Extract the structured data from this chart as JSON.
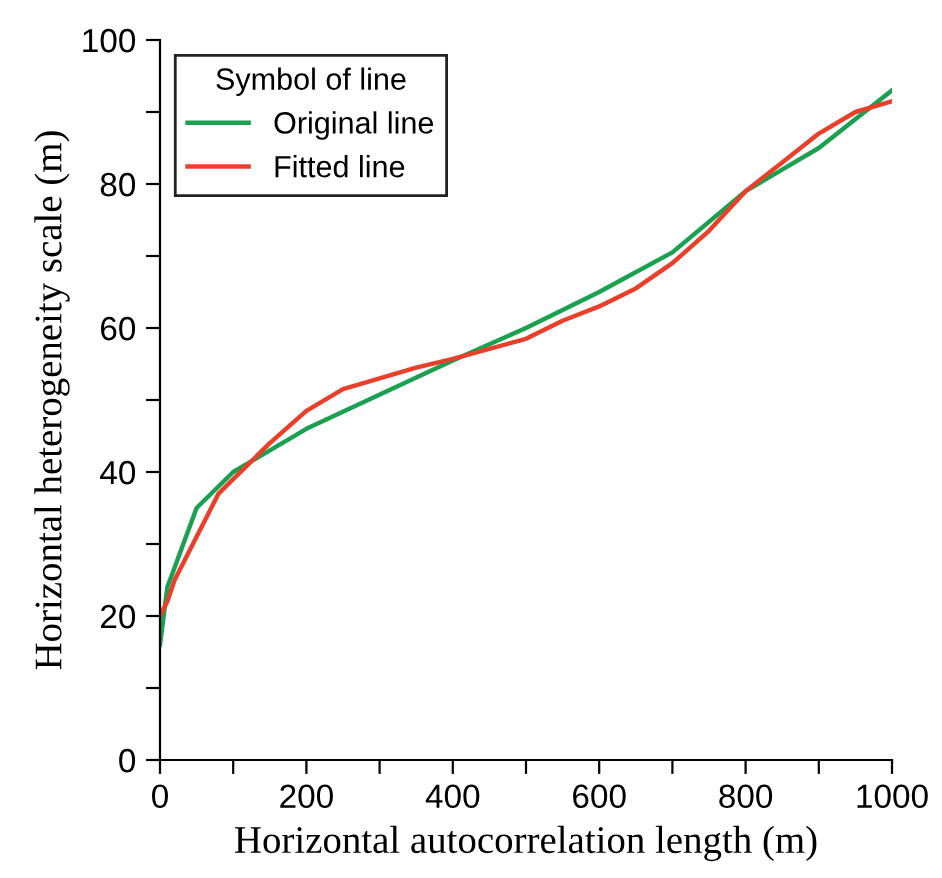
{
  "chart_data": {
    "type": "line",
    "xlabel": "Horizontal autocorrelation length (m)",
    "ylabel": "Horizontal heterogeneity scale (m)",
    "legend_title": "Symbol of line",
    "legend": "top left",
    "grid": false,
    "xlim": [
      0,
      1000
    ],
    "ylim": [
      0,
      100
    ],
    "xticks": [
      0,
      {
        "value": 100,
        "label": null
      },
      200,
      {
        "value": 300,
        "label": null
      },
      400,
      {
        "value": 500,
        "label": null
      },
      600,
      {
        "value": 700,
        "label": null
      },
      800,
      {
        "value": 900,
        "label": null
      },
      1000
    ],
    "yticks": [
      0,
      {
        "value": 10,
        "label": null
      },
      20,
      {
        "value": 30,
        "label": null
      },
      40,
      {
        "value": 50,
        "label": null
      },
      60,
      {
        "value": 70,
        "label": null
      },
      80,
      {
        "value": 90,
        "label": null
      },
      100
    ],
    "series": [
      {
        "name": "Original line",
        "color": "#1aa050",
        "x": [
          0,
          10,
          50,
          100,
          200,
          400,
          500,
          600,
          700,
          800,
          900,
          1000
        ],
        "values": [
          16,
          24,
          35,
          40,
          46,
          55.5,
          60,
          65,
          70.5,
          79,
          85,
          93
        ]
      },
      {
        "name": "Fitted line",
        "color": "#e8402a",
        "x": [
          0,
          10,
          20,
          50,
          80,
          100,
          150,
          200,
          250,
          300,
          350,
          400,
          500,
          550,
          600,
          650,
          700,
          750,
          800,
          850,
          900,
          950,
          1000
        ],
        "values": [
          20,
          22,
          25,
          31,
          37,
          39,
          44,
          48.5,
          51.5,
          53,
          54.5,
          55.7,
          58.5,
          61,
          63,
          65.5,
          69,
          73.5,
          79,
          83,
          87,
          90,
          91.5
        ]
      }
    ]
  }
}
